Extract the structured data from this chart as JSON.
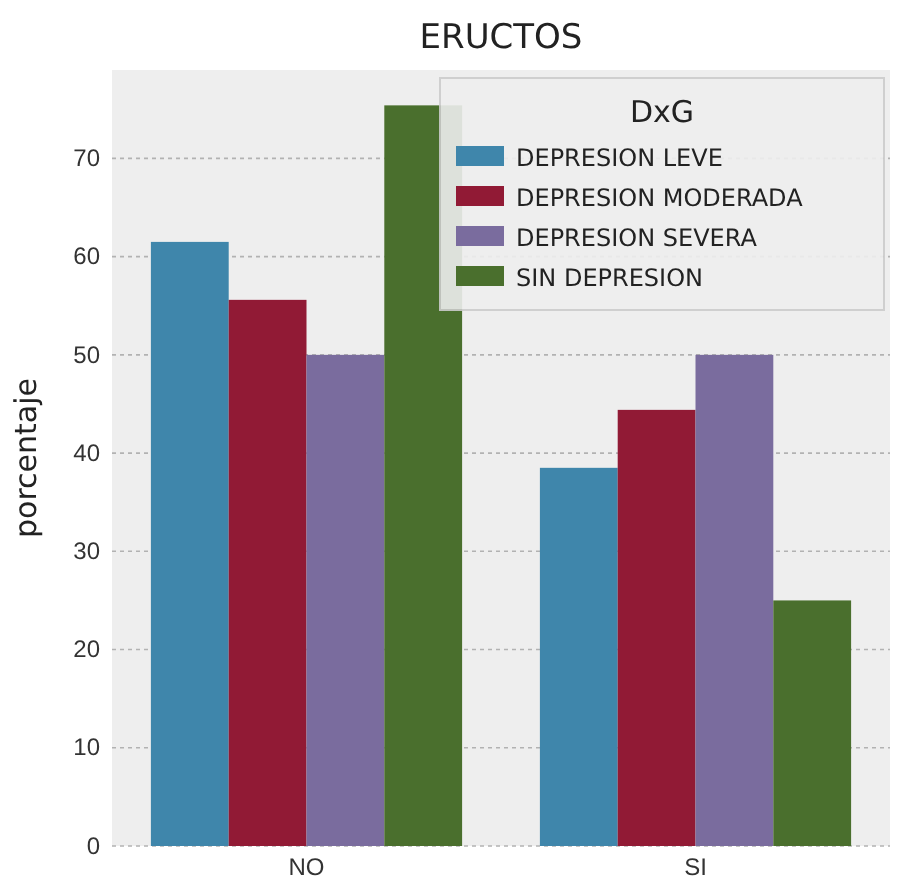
{
  "chart_data": {
    "type": "bar",
    "title": "ERUCTOS",
    "ylabel": "porcentaje",
    "legend_title": "DxG",
    "categories": [
      "NO",
      "SI"
    ],
    "series": [
      {
        "name": "DEPRESION LEVE",
        "color": "#3f86ab",
        "values": [
          61.5,
          38.5
        ]
      },
      {
        "name": "DEPRESION MODERADA",
        "color": "#911a35",
        "values": [
          55.6,
          44.4
        ]
      },
      {
        "name": "DEPRESION SEVERA",
        "color": "#7a6c9e",
        "values": [
          50,
          50
        ]
      },
      {
        "name": "SIN DEPRESION",
        "color": "#4a6f2d",
        "values": [
          75.4,
          25
        ]
      }
    ],
    "ylim": [
      0,
      79
    ],
    "yticks": [
      0,
      10,
      20,
      30,
      40,
      50,
      60,
      70
    ],
    "grid": "y",
    "legend": "top right"
  }
}
